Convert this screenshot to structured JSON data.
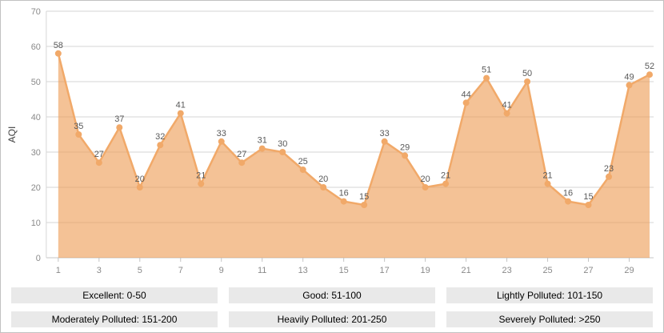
{
  "chart_data": {
    "type": "area",
    "title": "",
    "xlabel": "",
    "ylabel": "AQI",
    "series_name": "AQI",
    "x": [
      1,
      2,
      3,
      4,
      5,
      6,
      7,
      8,
      9,
      10,
      11,
      12,
      13,
      14,
      15,
      16,
      17,
      18,
      19,
      20,
      21,
      22,
      23,
      24,
      25,
      26,
      27,
      28,
      29,
      30
    ],
    "values": [
      58,
      35,
      27,
      37,
      20,
      32,
      41,
      21,
      33,
      27,
      31,
      30,
      25,
      20,
      16,
      15,
      33,
      29,
      20,
      21,
      44,
      51,
      41,
      50,
      21,
      16,
      15,
      23,
      49,
      52
    ],
    "ylim": [
      0,
      70
    ],
    "ytick_step": 10,
    "xtick_labels": [
      1,
      3,
      5,
      7,
      9,
      11,
      13,
      15,
      17,
      19,
      21,
      23,
      25,
      27,
      29
    ],
    "grid": "horizontal",
    "legend_position": "bottom",
    "point_labels_visible": true
  },
  "legend": {
    "items": [
      {
        "label": "Excellent: 0-50"
      },
      {
        "label": "Good: 51-100"
      },
      {
        "label": "Lightly Polluted: 101-150"
      },
      {
        "label": "Moderately Polluted: 151-200"
      },
      {
        "label": "Heavily Polluted: 201-250"
      },
      {
        "label": "Severely Polluted: >250"
      }
    ]
  },
  "colors": {
    "area_fill": "#ED9C55",
    "area_opacity": "0.62",
    "line": "#F1A969",
    "marker": "#F1A969",
    "grid": "#D6D6D6",
    "axis": "#C4C4C4",
    "tick_text": "#8A8A8A",
    "label_text": "#595959",
    "ylabel_text": "#404040",
    "legend_bg": "#E9E9E9",
    "frame_border": "#C2C2C2"
  }
}
